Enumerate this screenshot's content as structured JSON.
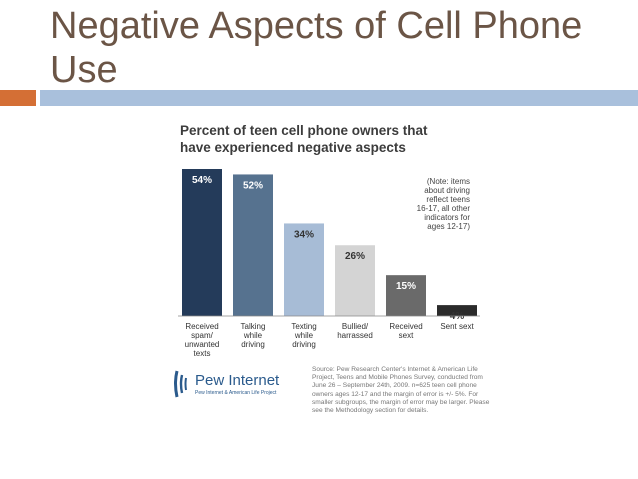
{
  "slide": {
    "title": "Negative Aspects of Cell Phone Use"
  },
  "colors": {
    "accent_orange": "#d46f35",
    "accent_blue_band": "#a9c0dc",
    "title_brown": "#6b5546"
  },
  "chart_data": {
    "type": "bar",
    "title_lines": [
      "Percent of teen cell phone owners that",
      "have experienced negative aspects"
    ],
    "categories": [
      [
        "Received",
        "spam/",
        "unwanted",
        "texts"
      ],
      [
        "Talking",
        "while",
        "driving"
      ],
      [
        "Texting",
        "while",
        "driving"
      ],
      [
        "Bullied/",
        "harrassed"
      ],
      [
        "Received",
        "sext"
      ],
      [
        "Sent sext"
      ]
    ],
    "values": [
      54,
      52,
      34,
      26,
      15,
      4
    ],
    "value_labels": [
      "54%",
      "52%",
      "34%",
      "26%",
      "15%",
      "4%"
    ],
    "bar_colors": [
      "#243b5a",
      "#56728f",
      "#a7bcd6",
      "#d4d4d4",
      "#6a6a6a",
      "#2b2b2b"
    ],
    "label_colors": [
      "#ffffff",
      "#ffffff",
      "#333333",
      "#333333",
      "#ffffff",
      "#333333"
    ],
    "ylim": [
      0,
      54
    ],
    "note_lines": [
      "(Note: items",
      "about driving",
      "reflect teens",
      "16-17, all other",
      "indicators for",
      "ages 12-17)"
    ],
    "grid": false
  },
  "source": {
    "text": "Source: Pew Research Center's Internet & American Life Project, Teens and Mobile Phones Survey, conducted from June 26 – September 24th, 2009. n=625 teen cell phone owners ages 12-17 and the margin of error is +/- 5%. For smaller subgroups, the margin of error may be larger. Please see the Methodology section for details."
  },
  "logo": {
    "main": "Pew Internet",
    "sub": "Pew Internet & American Life Project"
  }
}
